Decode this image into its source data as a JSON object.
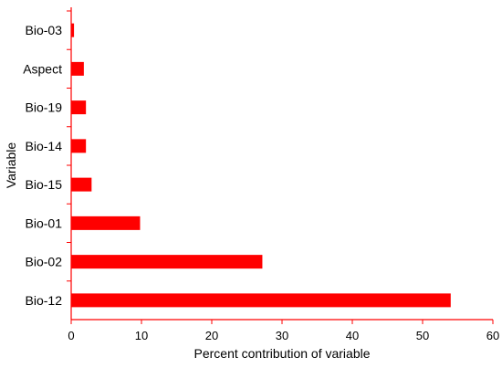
{
  "chart_data": {
    "type": "bar",
    "orientation": "horizontal",
    "categories": [
      "Bio-03",
      "Aspect",
      "Bio-19",
      "Bio-14",
      "Bio-15",
      "Bio-01",
      "Bio-02",
      "Bio-12"
    ],
    "values": [
      0.4,
      1.8,
      2.1,
      2.1,
      2.9,
      9.8,
      27.2,
      54.0
    ],
    "xlabel": "Percent contribution of variable",
    "ylabel": "Variable",
    "xlim": [
      0,
      60
    ],
    "xticks": [
      0,
      10,
      20,
      30,
      40,
      50,
      60
    ],
    "grid": false,
    "bar_color": "#ff0000",
    "axis_color": "#ff0000"
  }
}
